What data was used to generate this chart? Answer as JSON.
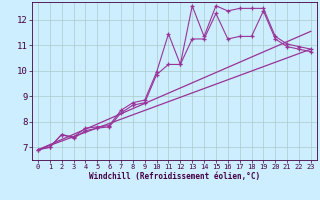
{
  "bg_color": "#cceeff",
  "grid_color": "#aacccc",
  "line_color": "#993399",
  "xlim": [
    -0.5,
    23.5
  ],
  "ylim": [
    6.5,
    12.7
  ],
  "xticks": [
    0,
    1,
    2,
    3,
    4,
    5,
    6,
    7,
    8,
    9,
    10,
    11,
    12,
    13,
    14,
    15,
    16,
    17,
    18,
    19,
    20,
    21,
    22,
    23
  ],
  "yticks": [
    7,
    8,
    9,
    10,
    11,
    12
  ],
  "xlabel": "Windchill (Refroidissement éolien,°C)",
  "series": {
    "line1_x": [
      0,
      1,
      2,
      3,
      4,
      5,
      6,
      7,
      8,
      9,
      10,
      11,
      12,
      13,
      14,
      15,
      16,
      17,
      18,
      19,
      20,
      21,
      22,
      23
    ],
    "line1_y": [
      6.9,
      7.0,
      7.5,
      7.4,
      7.75,
      7.8,
      7.85,
      8.45,
      8.75,
      8.85,
      9.95,
      11.45,
      10.25,
      12.55,
      11.35,
      12.55,
      12.35,
      12.45,
      12.45,
      12.45,
      11.35,
      11.05,
      10.95,
      10.85
    ],
    "line2_x": [
      0,
      1,
      2,
      3,
      4,
      5,
      6,
      7,
      8,
      9,
      10,
      11,
      12,
      13,
      14,
      15,
      16,
      17,
      18,
      19,
      20,
      21,
      22,
      23
    ],
    "line2_y": [
      6.9,
      7.0,
      7.5,
      7.35,
      7.65,
      7.75,
      7.8,
      8.35,
      8.65,
      8.75,
      9.85,
      10.25,
      10.25,
      11.25,
      11.25,
      12.25,
      11.25,
      11.35,
      11.35,
      12.35,
      11.25,
      10.95,
      10.85,
      10.75
    ],
    "line3_x": [
      0,
      23
    ],
    "line3_y": [
      6.9,
      10.85
    ],
    "line4_x": [
      0,
      23
    ],
    "line4_y": [
      6.9,
      11.55
    ]
  }
}
